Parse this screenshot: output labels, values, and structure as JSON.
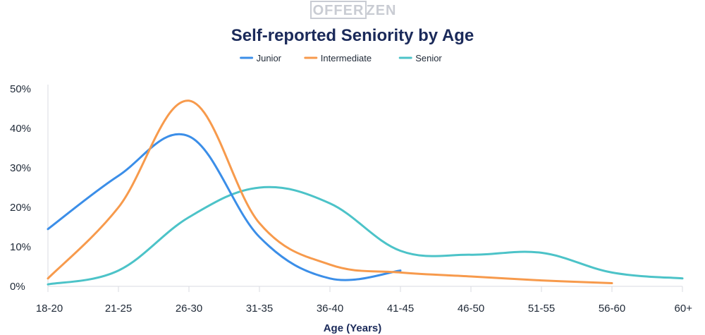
{
  "logo": {
    "left": "OFFER",
    "right": "ZEN"
  },
  "chart_data": {
    "type": "line",
    "title": "Self-reported Seniority by Age",
    "xlabel": "Age (Years)",
    "ylabel": "",
    "categories": [
      "18-20",
      "21-25",
      "26-30",
      "31-35",
      "36-40",
      "41-45",
      "46-50",
      "51-55",
      "56-60",
      "60+"
    ],
    "y_ticks": [
      "0%",
      "10%",
      "20%",
      "30%",
      "40%",
      "50%"
    ],
    "ylim": [
      0,
      50
    ],
    "grid": false,
    "legend_position": "top-center",
    "series": [
      {
        "name": "Junior",
        "color": "#3b8ee8",
        "points": [
          [
            0,
            14.5
          ],
          [
            1,
            28
          ],
          [
            2,
            38
          ],
          [
            3,
            12.5
          ],
          [
            4,
            2
          ],
          [
            5,
            4
          ]
        ]
      },
      {
        "name": "Intermediate",
        "color": "#f79a4c",
        "points": [
          [
            0,
            2
          ],
          [
            1,
            20
          ],
          [
            2,
            47
          ],
          [
            3,
            16
          ],
          [
            4,
            5.5
          ],
          [
            5,
            3.5
          ],
          [
            6,
            2.5
          ],
          [
            7,
            1.5
          ],
          [
            8,
            0.8
          ]
        ]
      },
      {
        "name": "Senior",
        "color": "#4cc3c8",
        "points": [
          [
            0,
            0.5
          ],
          [
            1,
            4
          ],
          [
            2,
            17.5
          ],
          [
            3,
            25
          ],
          [
            4,
            21
          ],
          [
            5,
            9
          ],
          [
            6,
            8
          ],
          [
            7,
            8.5
          ],
          [
            8,
            3.5
          ],
          [
            9,
            2
          ]
        ]
      }
    ]
  }
}
